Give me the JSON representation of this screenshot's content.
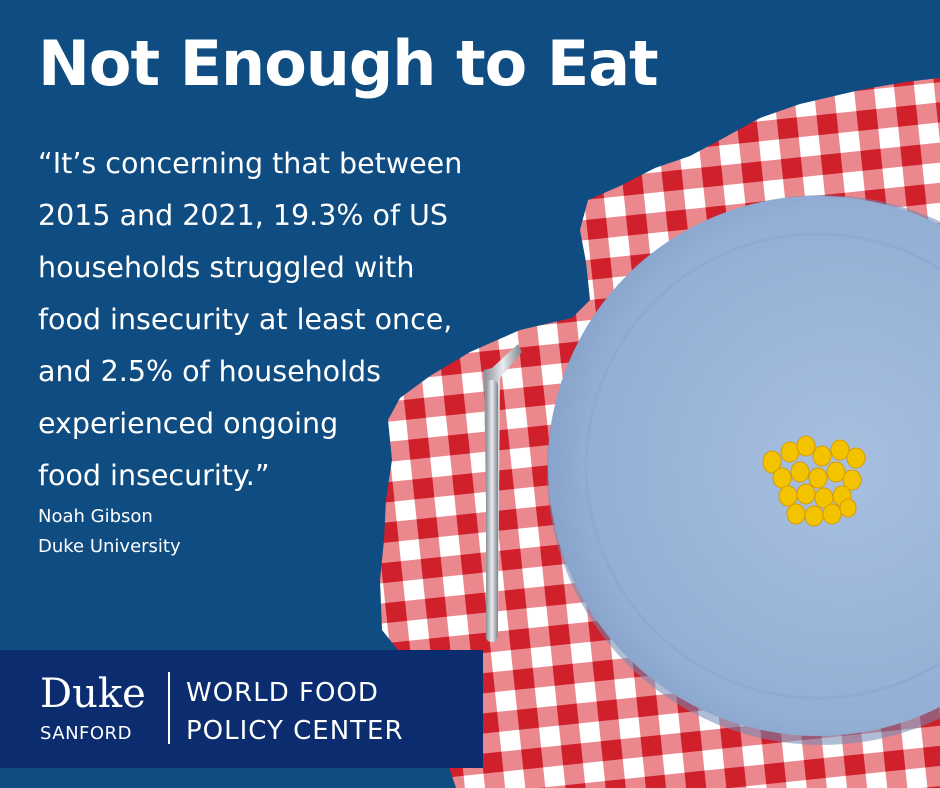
{
  "title": "Not Enough to Eat",
  "quote_lines": [
    "“It’s concerning that between",
    "2015 and 2021, 19.3% of US",
    "households struggled with",
    "food insecurity at least once,",
    "and 2.5% of households",
    "experienced ongoing",
    "food insecurity.”"
  ],
  "attribution": {
    "name": "Noah Gibson",
    "affiliation": "Duke University"
  },
  "logo": {
    "duke": "Duke",
    "sanford": "SANFORD",
    "center_line1": "WORLD FOOD",
    "center_line2": "POLICY CENTER"
  },
  "colors": {
    "background": "#0f4c81",
    "logo_bar": "#0b2d6f",
    "gingham_red": "#d9252f",
    "plate": "#98b3d6",
    "corn": "#f2c200"
  }
}
